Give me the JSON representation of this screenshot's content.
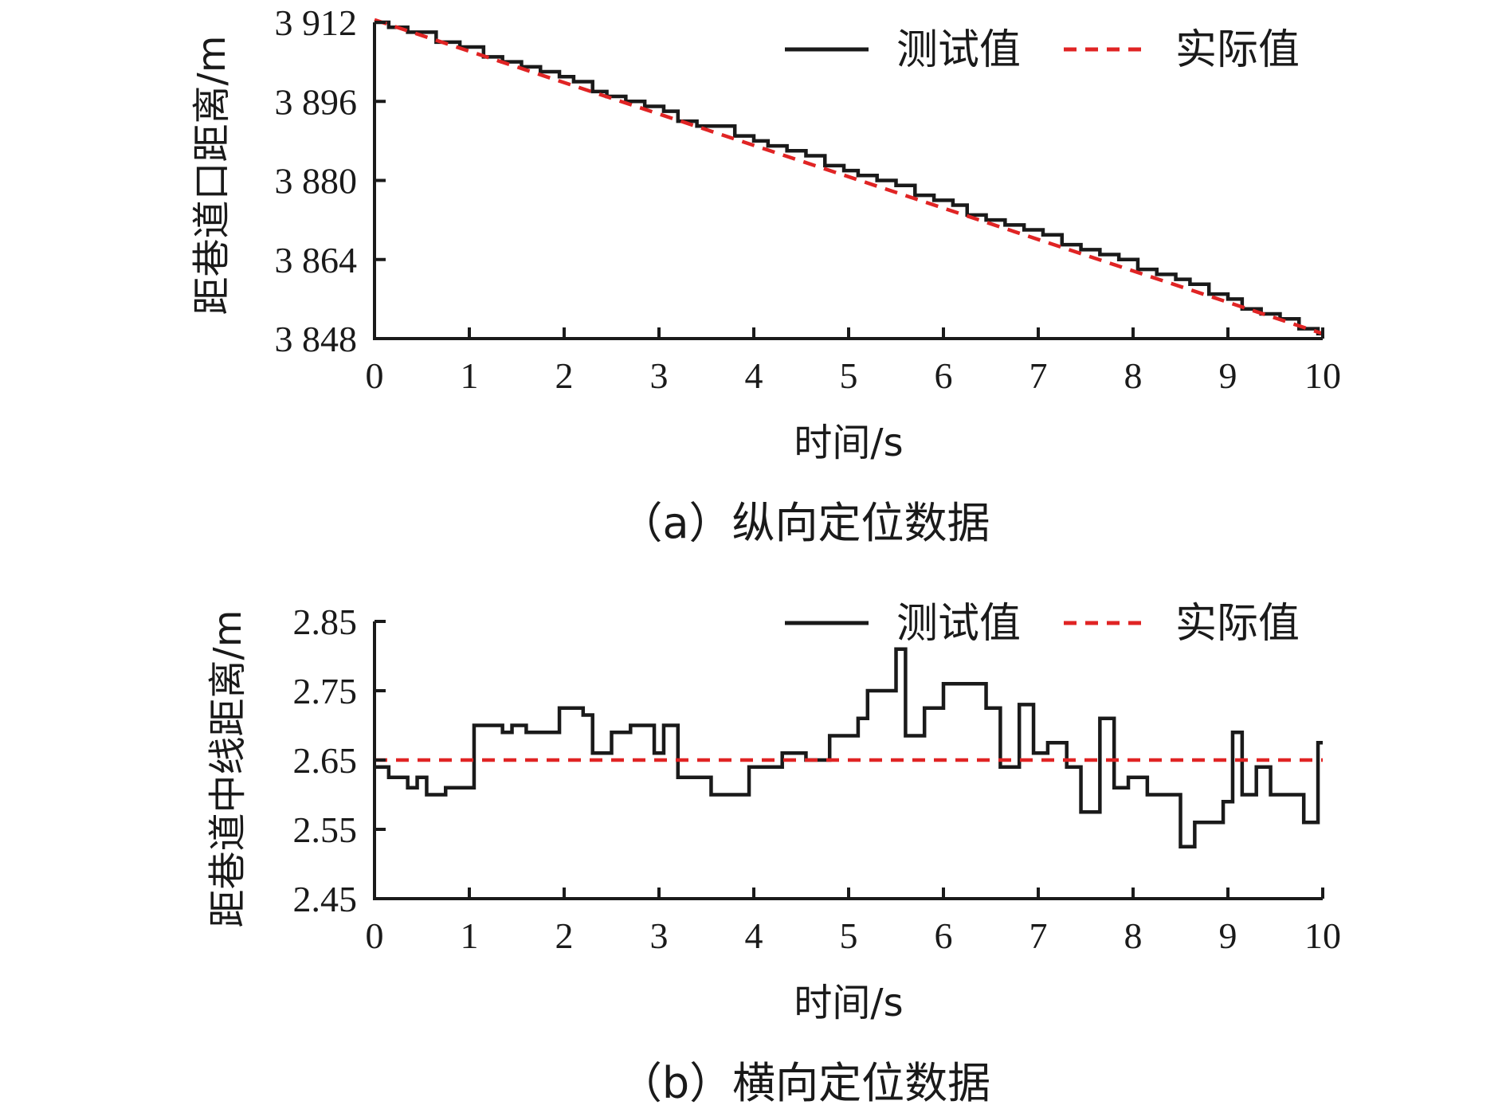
{
  "chart_data": [
    {
      "type": "line",
      "caption": "（a）纵向定位数据",
      "xlabel": "时间/s",
      "ylabel": "距巷道口距离/m",
      "xlim": [
        0,
        10
      ],
      "ylim": [
        3848,
        3912
      ],
      "xticks": [
        0,
        1,
        2,
        3,
        4,
        5,
        6,
        7,
        8,
        9,
        10
      ],
      "yticks": [
        3848,
        3864,
        3880,
        3896,
        3912
      ],
      "yticklabels": [
        "3 848",
        "3 864",
        "3 880",
        "3 896",
        "3 912"
      ],
      "legend_position": "top-right",
      "series": [
        {
          "name": "测试值",
          "color": "#1a1a1a",
          "style": "solid-step",
          "x": [
            0.05,
            0.15,
            0.35,
            0.65,
            0.9,
            1.15,
            1.35,
            1.55,
            1.75,
            1.95,
            2.1,
            2.3,
            2.45,
            2.65,
            2.85,
            3.05,
            3.2,
            3.4,
            3.6,
            3.8,
            4.0,
            4.15,
            4.35,
            4.55,
            4.75,
            4.95,
            5.1,
            5.3,
            5.5,
            5.7,
            5.9,
            6.1,
            6.25,
            6.45,
            6.65,
            6.85,
            7.05,
            7.25,
            7.45,
            7.65,
            7.85,
            8.05,
            8.25,
            8.45,
            8.6,
            8.8,
            9.0,
            9.15,
            9.35,
            9.55,
            9.75,
            9.95
          ],
          "y": [
            3912,
            3911,
            3910,
            3908,
            3907,
            3905,
            3904,
            3903,
            3902,
            3901,
            3900,
            3898,
            3897,
            3896,
            3895,
            3894,
            3892,
            3891,
            3891,
            3889,
            3888,
            3887,
            3886,
            3885,
            3883,
            3882,
            3881,
            3880,
            3879,
            3877,
            3876,
            3875,
            3873,
            3872,
            3871,
            3870,
            3869,
            3867,
            3866,
            3865,
            3864,
            3862,
            3861,
            3860,
            3859,
            3857,
            3856,
            3854,
            3853,
            3852,
            3850,
            3849
          ]
        },
        {
          "name": "实际值",
          "color": "#e02424",
          "style": "dashed",
          "x": [
            0,
            10
          ],
          "y": [
            3912.5,
            3849
          ]
        }
      ]
    },
    {
      "type": "line",
      "caption": "（b）横向定位数据",
      "xlabel": "时间/s",
      "ylabel": "距巷道中线距离/m",
      "xlim": [
        0,
        10
      ],
      "ylim": [
        2.45,
        2.85
      ],
      "xticks": [
        0,
        1,
        2,
        3,
        4,
        5,
        6,
        7,
        8,
        9,
        10
      ],
      "yticks": [
        2.45,
        2.55,
        2.65,
        2.75,
        2.85
      ],
      "yticklabels": [
        "2.45",
        "2.55",
        "2.65",
        "2.75",
        "2.85"
      ],
      "legend_position": "top-right",
      "series": [
        {
          "name": "测试值",
          "color": "#1a1a1a",
          "style": "solid-step",
          "x": [
            0.05,
            0.15,
            0.35,
            0.45,
            0.55,
            0.75,
            1.0,
            1.05,
            1.35,
            1.45,
            1.6,
            1.95,
            2.2,
            2.3,
            2.5,
            2.7,
            2.95,
            3.05,
            3.2,
            3.55,
            3.95,
            4.3,
            4.55,
            4.8,
            5.1,
            5.2,
            5.3,
            5.5,
            5.6,
            5.8,
            6.0,
            6.15,
            6.45,
            6.6,
            6.8,
            6.95,
            7.1,
            7.3,
            7.45,
            7.65,
            7.8,
            7.95,
            8.15,
            8.3,
            8.5,
            8.65,
            8.95,
            9.05,
            9.15,
            9.3,
            9.45,
            9.55,
            9.8,
            9.95
          ],
          "y": [
            2.64,
            2.625,
            2.61,
            2.625,
            2.6,
            2.61,
            2.61,
            2.7,
            2.69,
            2.7,
            2.69,
            2.725,
            2.715,
            2.66,
            2.69,
            2.7,
            2.66,
            2.7,
            2.625,
            2.6,
            2.64,
            2.66,
            2.65,
            2.685,
            2.71,
            2.75,
            2.75,
            2.81,
            2.685,
            2.725,
            2.76,
            2.76,
            2.725,
            2.64,
            2.73,
            2.66,
            2.675,
            2.64,
            2.575,
            2.71,
            2.61,
            2.625,
            2.6,
            2.6,
            2.525,
            2.56,
            2.59,
            2.69,
            2.6,
            2.64,
            2.6,
            2.6,
            2.56,
            2.675
          ]
        },
        {
          "name": "实际值",
          "color": "#e02424",
          "style": "dashed",
          "x": [
            0,
            10
          ],
          "y": [
            2.65,
            2.65
          ]
        }
      ]
    }
  ]
}
